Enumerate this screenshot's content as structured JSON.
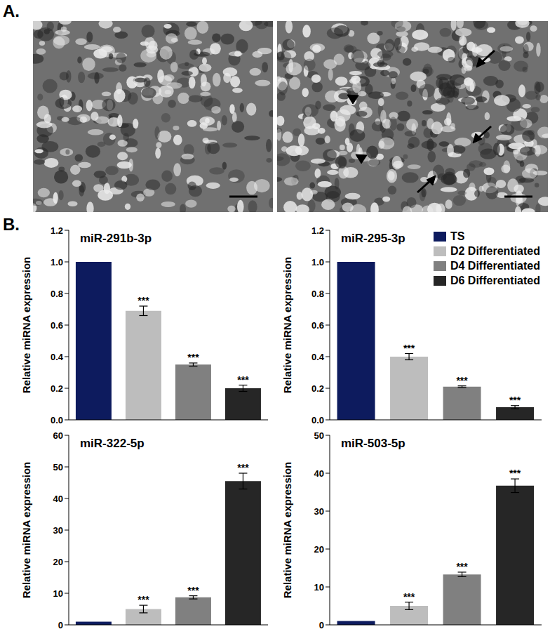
{
  "panel_labels": {
    "A": "A.",
    "B": "B."
  },
  "chart_data": [
    {
      "type": "bar",
      "title": "miR-291b-3p",
      "y_label": "Relative miRNA expression",
      "categories": [
        "TS",
        "D2 Differentiated",
        "D4 Differentiated",
        "D6 Differentiated"
      ],
      "values": [
        1.0,
        0.69,
        0.35,
        0.2
      ],
      "errors": [
        0,
        0.03,
        0.01,
        0.02
      ],
      "significance": [
        null,
        "***",
        "***",
        "***"
      ],
      "colors": [
        "#0d1b5e",
        "#bdbdbd",
        "#808080",
        "#262626"
      ],
      "ylim": [
        0,
        1.2
      ],
      "yticks": [
        {
          "value": 0,
          "label": "0.0"
        },
        0.2,
        0.4,
        0.6,
        0.8,
        {
          "value": 1,
          "label": "1.0"
        },
        1.2
      ],
      "tick_labels": "y"
    },
    {
      "type": "bar",
      "title": "miR-295-3p",
      "y_label": "Relative miRNA expression",
      "categories": [
        "TS",
        "D2 Differentiated",
        "D4 Differentiated",
        "D6 Differentiated"
      ],
      "values": [
        1.0,
        0.4,
        0.21,
        0.08
      ],
      "errors": [
        0,
        0.02,
        0.005,
        0.01
      ],
      "significance": [
        null,
        "***",
        "***",
        "***"
      ],
      "colors": [
        "#0d1b5e",
        "#bdbdbd",
        "#808080",
        "#262626"
      ],
      "ylim": [
        0,
        1.2
      ],
      "yticks": [
        {
          "value": 0,
          "label": "0.0"
        },
        0.2,
        0.4,
        0.6,
        0.8,
        {
          "value": 1,
          "label": "1.0"
        },
        1.2
      ],
      "tick_labels": "y",
      "legend": "upper right"
    },
    {
      "type": "bar",
      "title": "miR-322-5p",
      "y_label": "Relative miRNA expression",
      "categories": [
        "TS",
        "D2 Differentiated",
        "D4 Differentiated",
        "D6 Differentiated"
      ],
      "values": [
        1.0,
        5.0,
        8.7,
        45.5
      ],
      "errors": [
        0,
        1.2,
        0.5,
        2.5
      ],
      "significance": [
        null,
        "***",
        "***",
        "***"
      ],
      "colors": [
        "#0d1b5e",
        "#bdbdbd",
        "#808080",
        "#262626"
      ],
      "ylim": [
        0,
        60
      ],
      "yticks": [
        0,
        10,
        20,
        30,
        40,
        50,
        60
      ],
      "tick_labels": "y"
    },
    {
      "type": "bar",
      "title": "miR-503-5p",
      "y_label": "Relative miRNA expression",
      "categories": [
        "TS",
        "D2 Differentiated",
        "D4 Differentiated",
        "D6 Differentiated"
      ],
      "values": [
        1.0,
        5.0,
        13.3,
        36.7
      ],
      "errors": [
        0,
        1.0,
        0.6,
        1.8
      ],
      "significance": [
        null,
        "***",
        "***",
        "***"
      ],
      "colors": [
        "#0d1b5e",
        "#bdbdbd",
        "#808080",
        "#262626"
      ],
      "ylim": [
        0,
        50
      ],
      "yticks": [
        0,
        10,
        20,
        30,
        40,
        50
      ],
      "tick_labels": "y"
    }
  ]
}
